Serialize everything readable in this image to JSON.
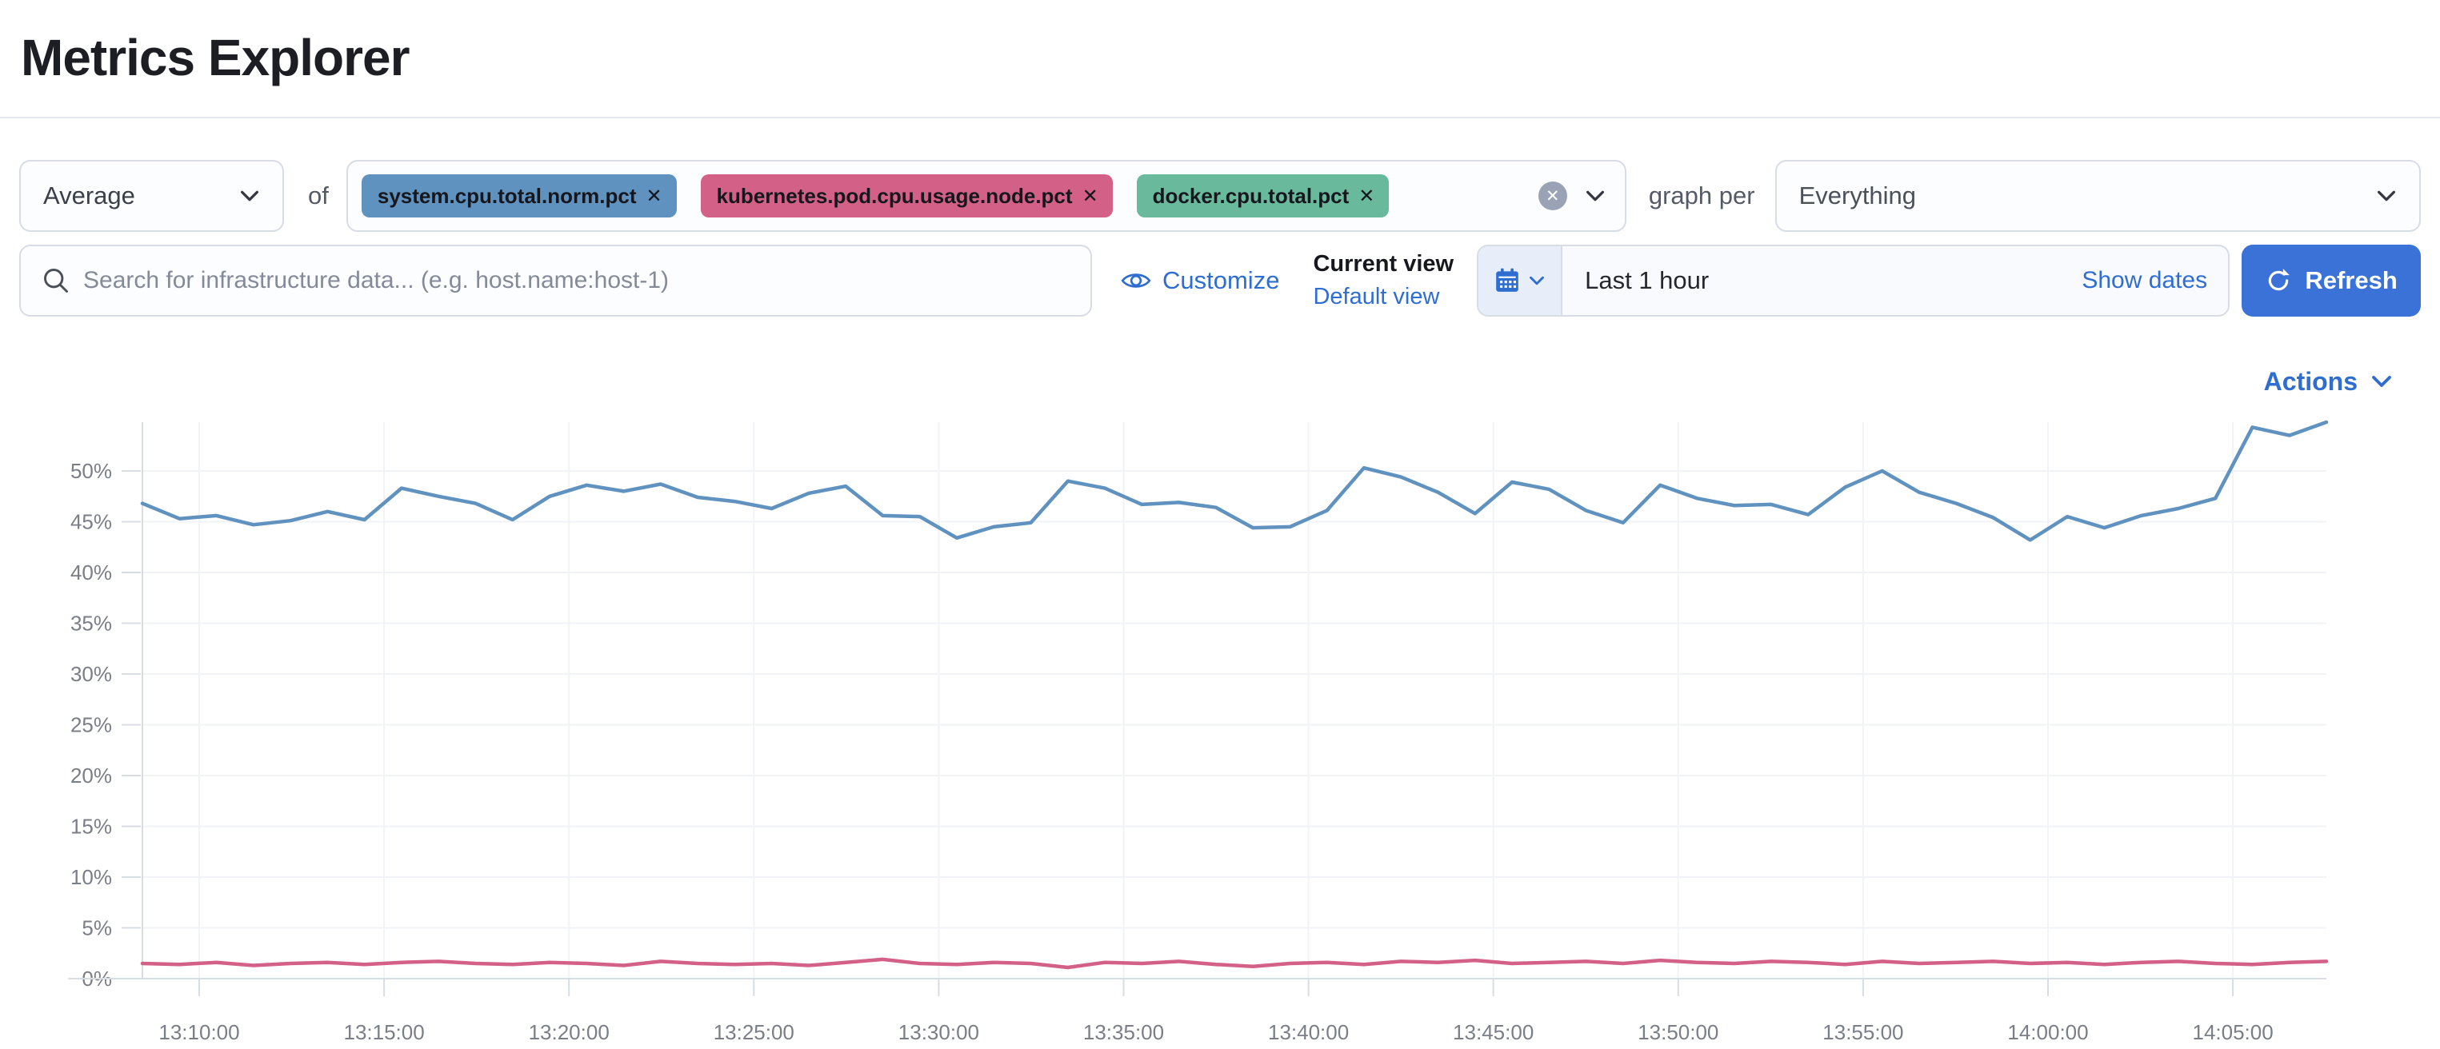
{
  "page": {
    "title": "Metrics Explorer"
  },
  "toolbar": {
    "aggregation": {
      "value": "Average"
    },
    "of_label": "of",
    "metrics": [
      {
        "label": "system.cpu.total.norm.pct",
        "color": "#6092C0"
      },
      {
        "label": "kubernetes.pod.cpu.usage.node.pct",
        "color": "#D36086"
      },
      {
        "label": "docker.cpu.total.pct",
        "color": "#69BA9D"
      }
    ],
    "graph_per_label": "graph per",
    "group_by": {
      "value": "Everything"
    }
  },
  "searchbar": {
    "placeholder": "Search for infrastructure data... (e.g. host.name:host-1)",
    "value": "",
    "customize_label": "Customize",
    "current_view_label": "Current view",
    "default_view_label": "Default view",
    "datepicker": {
      "value": "Last 1 hour",
      "show_dates_label": "Show dates"
    },
    "refresh_label": "Refresh"
  },
  "chart_header": {
    "actions_label": "Actions"
  },
  "icons": {
    "remove_glyph": "✕",
    "clear_glyph": "✕"
  },
  "colors": {
    "link_blue": "#2F6DD0",
    "refresh_button": "#3A72D8",
    "axis_line": "#D8DCE3",
    "grid_line": "#F2F3F6",
    "tick_label": "#7A7E87"
  },
  "chart_data": {
    "type": "line",
    "title": "",
    "xlabel": "",
    "ylabel": "",
    "grid": true,
    "legend": "none",
    "ylim": [
      0,
      55
    ],
    "y_tick_labels": [
      "0%",
      "5%",
      "10%",
      "15%",
      "20%",
      "25%",
      "30%",
      "35%",
      "40%",
      "45%",
      "50%"
    ],
    "x_tick_labels": [
      "13:10:00",
      "13:15:00",
      "13:20:00",
      "13:25:00",
      "13:30:00",
      "13:35:00",
      "13:40:00",
      "13:45:00",
      "13:50:00",
      "13:55:00",
      "14:00:00",
      "14:05:00"
    ],
    "x_start": "13:08:30",
    "x_interval_seconds": 60,
    "series": [
      {
        "name": "system.cpu.total.norm.pct",
        "color": "#6092C0",
        "values": [
          46.8,
          45.3,
          45.6,
          44.7,
          45.1,
          46.0,
          45.2,
          48.3,
          47.5,
          46.8,
          45.2,
          47.5,
          48.6,
          48.0,
          48.7,
          47.4,
          47.0,
          46.3,
          47.8,
          48.5,
          45.6,
          45.5,
          43.4,
          44.5,
          44.9,
          49.0,
          48.3,
          46.7,
          46.9,
          46.4,
          44.4,
          44.5,
          46.1,
          50.3,
          49.4,
          47.9,
          45.8,
          48.9,
          48.2,
          46.1,
          44.9,
          48.6,
          47.3,
          46.6,
          46.7,
          45.7,
          48.4,
          50.0,
          47.9,
          46.8,
          45.4,
          43.2,
          45.5,
          44.4,
          45.6,
          46.3,
          47.3,
          54.3,
          53.5,
          54.8
        ]
      },
      {
        "name": "kubernetes.pod.cpu.usage.node.pct",
        "color": "#D36086",
        "values": [
          1.5,
          1.4,
          1.6,
          1.3,
          1.5,
          1.6,
          1.4,
          1.6,
          1.7,
          1.5,
          1.4,
          1.6,
          1.5,
          1.3,
          1.7,
          1.5,
          1.4,
          1.5,
          1.3,
          1.6,
          1.9,
          1.5,
          1.4,
          1.6,
          1.5,
          1.1,
          1.6,
          1.5,
          1.7,
          1.4,
          1.2,
          1.5,
          1.6,
          1.4,
          1.7,
          1.6,
          1.8,
          1.5,
          1.6,
          1.7,
          1.5,
          1.8,
          1.6,
          1.5,
          1.7,
          1.6,
          1.4,
          1.7,
          1.5,
          1.6,
          1.7,
          1.5,
          1.6,
          1.4,
          1.6,
          1.7,
          1.5,
          1.4,
          1.6,
          1.7
        ]
      }
    ]
  }
}
